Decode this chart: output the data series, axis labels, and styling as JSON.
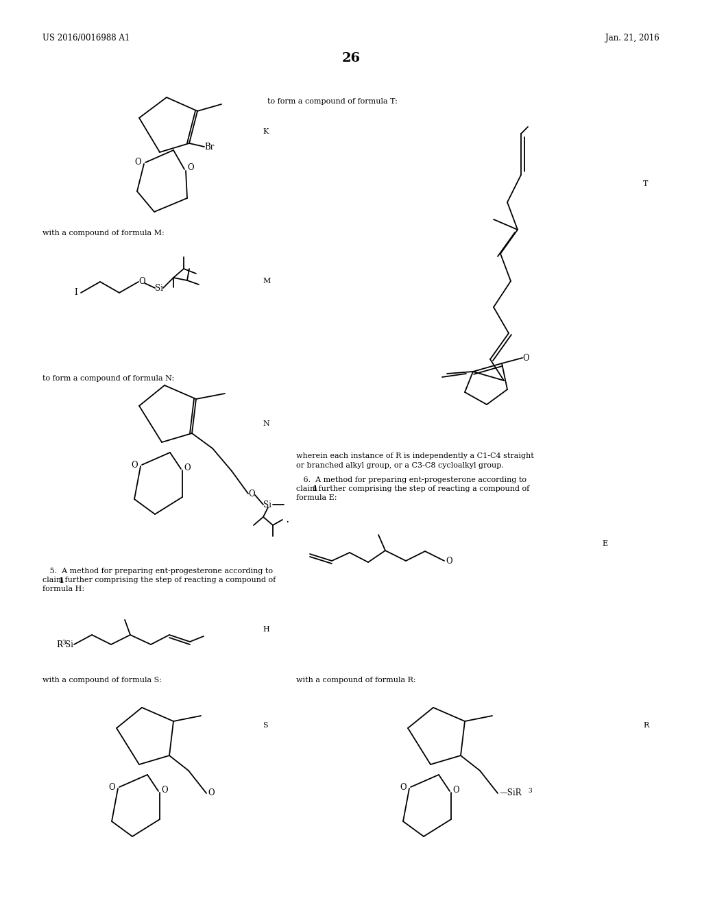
{
  "bg_color": "#ffffff",
  "header_left": "US 2016/0016988 A1",
  "header_right": "Jan. 21, 2016",
  "page_number": "26"
}
